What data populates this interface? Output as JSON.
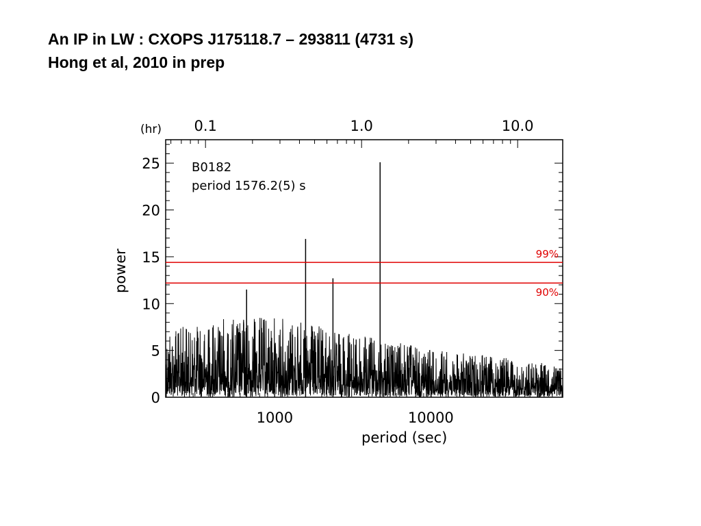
{
  "slide": {
    "title_line1": "An IP in LW : CXOPS J175118.7 – 293811 (4731 s)",
    "title_line2": "Hong et al, 2010 in prep"
  },
  "chart_data": {
    "type": "line",
    "xscale": "log",
    "xlabel": "period (sec)",
    "ylabel": "power",
    "xlim": [
      200,
      70000
    ],
    "ylim": [
      0,
      27.5
    ],
    "x_ticks": [
      1000,
      10000
    ],
    "x_tick_labels": [
      "1000",
      "10000"
    ],
    "y_ticks": [
      0,
      5,
      10,
      15,
      20,
      25
    ],
    "y_tick_labels": [
      "0",
      "5",
      "10",
      "15",
      "20",
      "25"
    ],
    "top_axis": {
      "unit_label": "(hr)",
      "ticks": [
        0.1,
        1.0,
        10.0
      ],
      "tick_labels": [
        "0.1",
        "1.0",
        "10.0"
      ]
    },
    "annotation": {
      "source": "B0182",
      "period_text": "period  1576.2(5)  s"
    },
    "thresholds": [
      {
        "label": "99%",
        "value": 14.4,
        "color": "#e00000"
      },
      {
        "label": "90%",
        "value": 12.2,
        "color": "#e00000"
      }
    ],
    "peaks": [
      {
        "x": 660,
        "y": 11.5
      },
      {
        "x": 1576.2,
        "y": 16.9
      },
      {
        "x": 2360,
        "y": 12.7
      },
      {
        "x": 4731,
        "y": 25.1
      }
    ],
    "noise_envelope": [
      {
        "x": 200,
        "y": 7.0
      },
      {
        "x": 1000,
        "y": 7.5
      },
      {
        "x": 3000,
        "y": 6.0
      },
      {
        "x": 10000,
        "y": 4.5
      },
      {
        "x": 70000,
        "y": 3.0
      }
    ],
    "grid": false,
    "legend": "none"
  }
}
